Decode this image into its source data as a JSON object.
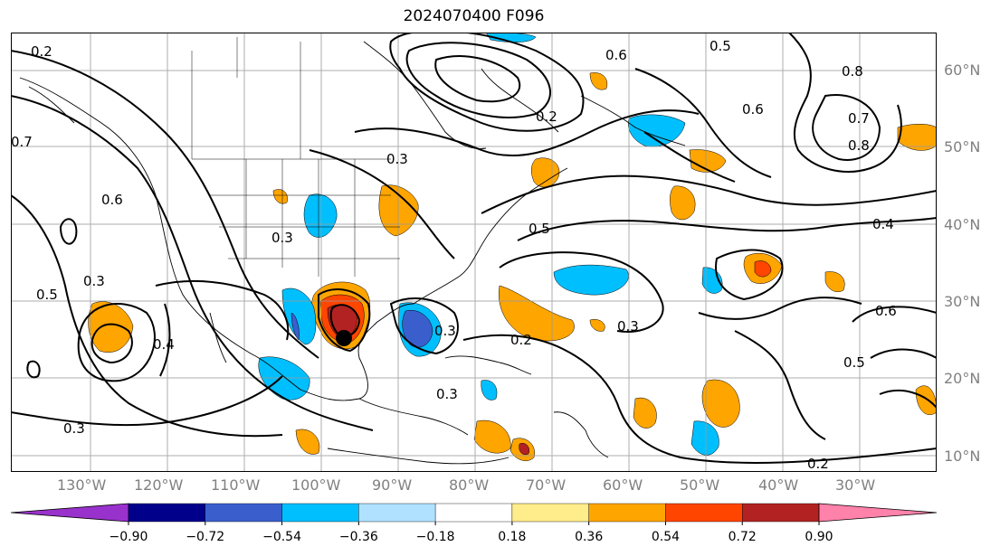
{
  "title": "2024070400 F096",
  "lon_labels": [
    "130°W",
    "120°W",
    "110°W",
    "100°W",
    "90°W",
    "80°W",
    "70°W",
    "60°W",
    "50°W",
    "40°W",
    "30°W"
  ],
  "lat_labels": [
    "60°N",
    "50°N",
    "40°N",
    "30°N",
    "20°N",
    "10°N"
  ],
  "contour_labels": [
    "0.2",
    "0.7",
    "0.6",
    "0.3",
    "0.5",
    "0.3",
    "0.3",
    "0.2",
    "0.3",
    "0.4",
    "0.3",
    "0.2",
    "0.6",
    "0.5",
    "0.8",
    "0.7",
    "0.6",
    "0.8",
    "0.4",
    "0.6",
    "0.5",
    "0.2",
    "0.3",
    "0.5",
    "0.3"
  ],
  "colorbar": {
    "ticks": [
      "−0.90",
      "−0.72",
      "−0.54",
      "−0.36",
      "−0.18",
      "0.18",
      "0.36",
      "0.54",
      "0.72",
      "0.90"
    ],
    "colors": [
      "#9932cc",
      "#00008b",
      "#3a5fcd",
      "#00bfff",
      "#b0e2ff",
      "#ffffff",
      "#ffec8b",
      "#ffa500",
      "#ff4500",
      "#b22222",
      "#ff82ab"
    ]
  },
  "storm_marker": "storm-center"
}
